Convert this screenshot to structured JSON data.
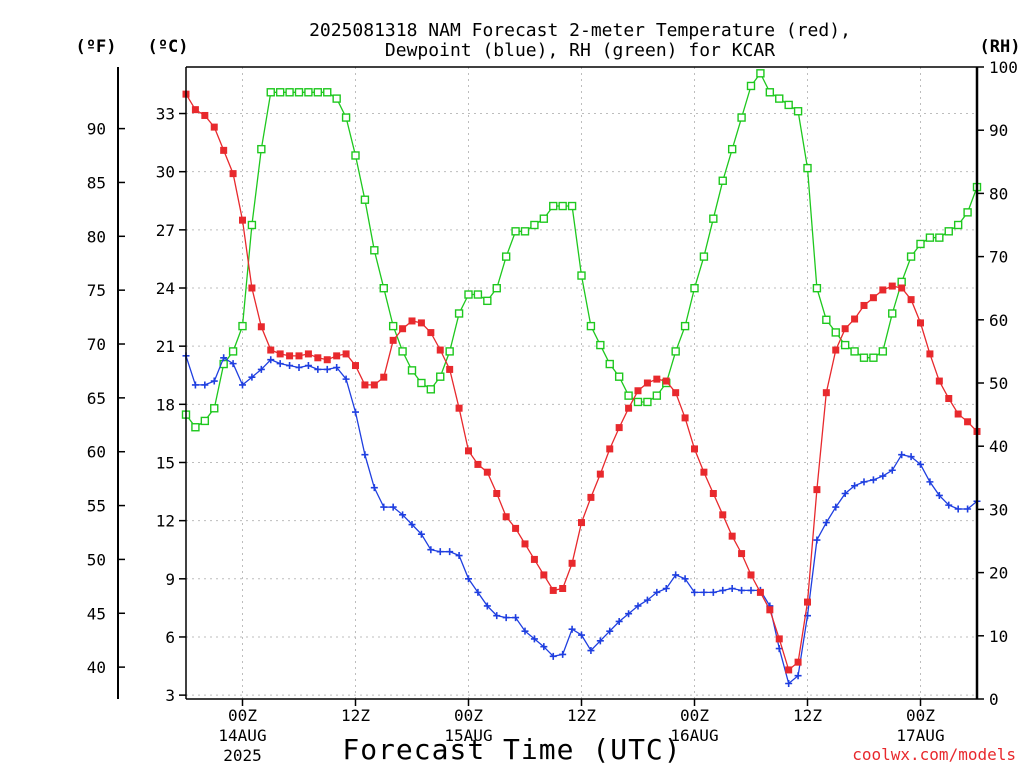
{
  "title_line1": "2025081318 NAM Forecast 2-meter Temperature (red),",
  "title_line2": "Dewpoint (blue), RH (green) for KCAR",
  "unit_f": "(ºF)",
  "unit_c": "(ºC)",
  "unit_rh": "(RH)",
  "xlabel": "Forecast Time (UTC)",
  "credit": "coolwx.com/models",
  "colors": {
    "temperature": "#e8292d",
    "dewpoint": "#1f3fe0",
    "rh": "#1ec81e",
    "axis": "#000000",
    "grid": "#bdbdbd",
    "credit": "#e8292d"
  },
  "chart_data": {
    "type": "line",
    "grid": true,
    "x_unit": "forecast hour from 2025-08-13 18Z",
    "xlim": [
      0,
      84
    ],
    "x_ticks": [
      {
        "x": 6,
        "label": "00Z",
        "date": "14AUG",
        "year": "2025"
      },
      {
        "x": 18,
        "label": "12Z",
        "date": "",
        "year": ""
      },
      {
        "x": 30,
        "label": "00Z",
        "date": "15AUG",
        "year": ""
      },
      {
        "x": 42,
        "label": "12Z",
        "date": "",
        "year": ""
      },
      {
        "x": 54,
        "label": "00Z",
        "date": "16AUG",
        "year": ""
      },
      {
        "x": 66,
        "label": "12Z",
        "date": "",
        "year": ""
      },
      {
        "x": 78,
        "label": "00Z",
        "date": "17AUG",
        "year": ""
      }
    ],
    "y_celsius": {
      "lim": [
        2.8,
        35.4
      ],
      "ticks": [
        "3",
        "6",
        "9",
        "12",
        "15",
        "18",
        "21",
        "24",
        "27",
        "30",
        "33"
      ]
    },
    "y_fahrenheit": {
      "ticks": [
        "40",
        "45",
        "50",
        "55",
        "60",
        "65",
        "70",
        "75",
        "80",
        "85",
        "90"
      ]
    },
    "y_rh": {
      "lim": [
        0,
        100
      ],
      "ticks": [
        "0",
        "10",
        "20",
        "30",
        "40",
        "50",
        "60",
        "70",
        "80",
        "90",
        "100"
      ]
    },
    "x": [
      0,
      1,
      2,
      3,
      4,
      5,
      6,
      7,
      8,
      9,
      10,
      11,
      12,
      13,
      14,
      15,
      16,
      17,
      18,
      19,
      20,
      21,
      22,
      23,
      24,
      25,
      26,
      27,
      28,
      29,
      30,
      31,
      32,
      33,
      34,
      35,
      36,
      37,
      38,
      39,
      40,
      41,
      42,
      43,
      44,
      45,
      46,
      47,
      48,
      49,
      50,
      51,
      52,
      53,
      54,
      55,
      56,
      57,
      58,
      59,
      60,
      61,
      62,
      63,
      64,
      65,
      66,
      67,
      68,
      69,
      70,
      71,
      72,
      73,
      74,
      75,
      76,
      77,
      78,
      79,
      80,
      81,
      82,
      83,
      84
    ],
    "series": [
      {
        "name": "Temperature",
        "axis": "celsius",
        "marker": "filled-square",
        "values": [
          34.0,
          33.2,
          32.9,
          32.3,
          31.1,
          29.9,
          27.5,
          24.0,
          22.0,
          20.8,
          20.6,
          20.5,
          20.5,
          20.6,
          20.4,
          20.3,
          20.5,
          20.6,
          20.0,
          19.0,
          19.0,
          19.4,
          21.3,
          21.9,
          22.3,
          22.2,
          21.7,
          20.8,
          19.8,
          17.8,
          15.6,
          14.9,
          14.5,
          13.4,
          12.2,
          11.6,
          10.8,
          10.0,
          9.2,
          8.4,
          8.5,
          9.8,
          11.9,
          13.2,
          14.4,
          15.7,
          16.8,
          17.8,
          18.7,
          19.1,
          19.3,
          19.2,
          18.6,
          17.3,
          15.7,
          14.5,
          13.4,
          12.3,
          11.2,
          10.3,
          9.2,
          8.3,
          7.4,
          5.9,
          4.3,
          4.7,
          7.8,
          13.6,
          18.6,
          20.8,
          21.9,
          22.4,
          23.1,
          23.5,
          23.9,
          24.1,
          24.0,
          23.4,
          22.2,
          20.6,
          19.2,
          18.3,
          17.5,
          17.1,
          16.6
        ]
      },
      {
        "name": "Dewpoint",
        "axis": "celsius",
        "marker": "plus",
        "values": [
          20.5,
          19.0,
          19.0,
          19.2,
          20.4,
          20.1,
          19.0,
          19.4,
          19.8,
          20.3,
          20.1,
          20.0,
          19.9,
          20.0,
          19.8,
          19.8,
          19.9,
          19.3,
          17.6,
          15.4,
          13.7,
          12.7,
          12.7,
          12.3,
          11.8,
          11.3,
          10.5,
          10.4,
          10.4,
          10.2,
          9.0,
          8.3,
          7.6,
          7.1,
          7.0,
          7.0,
          6.3,
          5.9,
          5.5,
          5.0,
          5.1,
          6.4,
          6.1,
          5.3,
          5.8,
          6.3,
          6.8,
          7.2,
          7.6,
          7.9,
          8.3,
          8.5,
          9.2,
          9.0,
          8.3,
          8.3,
          8.3,
          8.4,
          8.5,
          8.4,
          8.4,
          8.4,
          7.6,
          5.4,
          3.6,
          4.0,
          7.1,
          11.0,
          11.9,
          12.7,
          13.4,
          13.8,
          14.0,
          14.1,
          14.3,
          14.6,
          15.4,
          15.3,
          14.9,
          14.0,
          13.3,
          12.8,
          12.6,
          12.6,
          13.0
        ]
      },
      {
        "name": "RH",
        "axis": "rh",
        "marker": "open-square",
        "values": [
          45,
          43,
          44,
          46,
          53,
          55,
          59,
          75,
          87,
          96,
          96,
          96,
          96,
          96,
          96,
          96,
          95,
          92,
          86,
          79,
          71,
          65,
          59,
          55,
          52,
          50,
          49,
          51,
          55,
          61,
          64,
          64,
          63,
          65,
          70,
          74,
          74,
          75,
          76,
          78,
          78,
          78,
          67,
          59,
          56,
          53,
          51,
          48,
          47,
          47,
          48,
          50,
          55,
          59,
          65,
          70,
          76,
          82,
          87,
          92,
          97,
          99,
          96,
          95,
          94,
          93,
          84,
          65,
          60,
          58,
          56,
          55,
          54,
          54,
          55,
          61,
          66,
          70,
          72,
          73,
          73,
          74,
          75,
          77,
          81
        ]
      }
    ]
  }
}
